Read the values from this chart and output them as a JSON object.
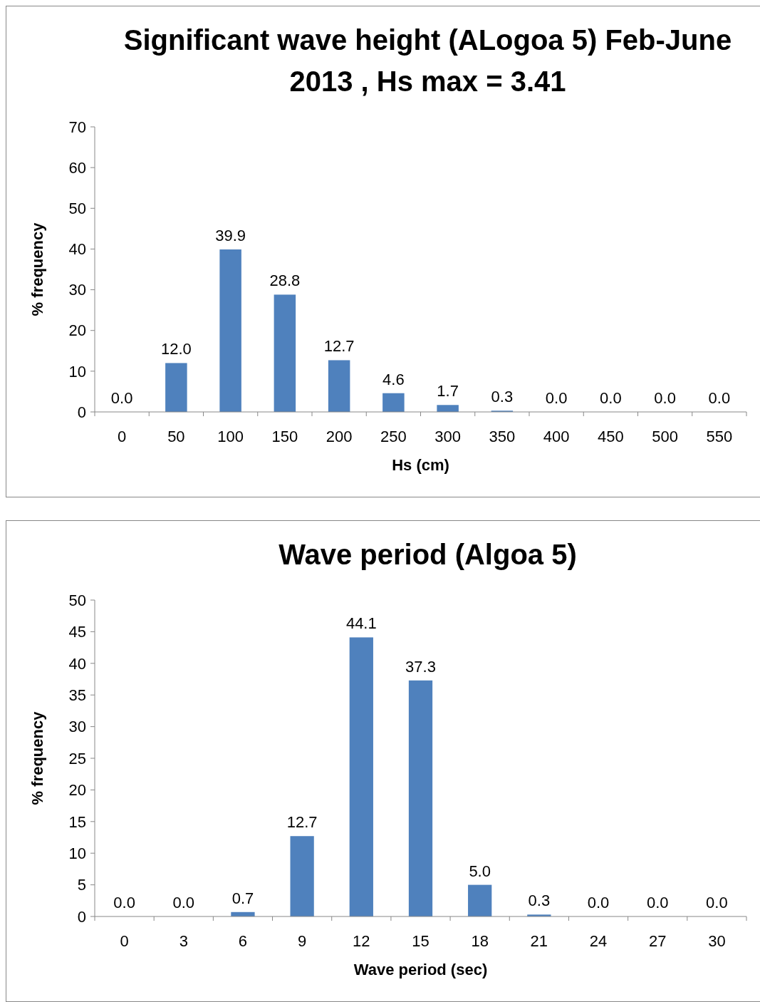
{
  "chart_data": [
    {
      "type": "bar",
      "title": "Significant wave height (ALogoa 5) Feb-June 2013 , Hs max = 3.41",
      "xlabel": "Hs (cm)",
      "ylabel": "% frequency",
      "categories": [
        "0",
        "50",
        "100",
        "150",
        "200",
        "250",
        "300",
        "350",
        "400",
        "450",
        "500",
        "550"
      ],
      "values": [
        0,
        12,
        39.9,
        28.8,
        12.7,
        4.6,
        1.7,
        0.3,
        0,
        0,
        0,
        0
      ],
      "value_labels": [
        "0.0",
        "12.0",
        "39.9",
        "28.8",
        "12.7",
        "4.6",
        "1.7",
        "0.3",
        "0.0",
        "0.0",
        "0.0",
        "0.0"
      ],
      "color": "#4f81bd",
      "ylim": [
        0,
        70
      ],
      "yticks": [
        0,
        10,
        20,
        30,
        40,
        50,
        60,
        70
      ]
    },
    {
      "type": "bar",
      "title": "Wave period (Algoa 5)",
      "xlabel": "Wave period (sec)",
      "ylabel": "% frequency",
      "categories": [
        "0",
        "3",
        "6",
        "9",
        "12",
        "15",
        "18",
        "21",
        "24",
        "27",
        "30"
      ],
      "values": [
        0,
        0,
        0.7,
        12.7,
        44.1,
        37.3,
        5,
        0.3,
        0,
        0,
        0
      ],
      "value_labels": [
        "0.0",
        "0.0",
        "0.7",
        "12.7",
        "44.1",
        "37.3",
        "5.0",
        "0.3",
        "0.0",
        "0.0",
        "0.0"
      ],
      "color": "#4f81bd",
      "ylim": [
        0,
        50
      ],
      "yticks": [
        0,
        5,
        10,
        15,
        20,
        25,
        30,
        35,
        40,
        45,
        50
      ]
    }
  ]
}
